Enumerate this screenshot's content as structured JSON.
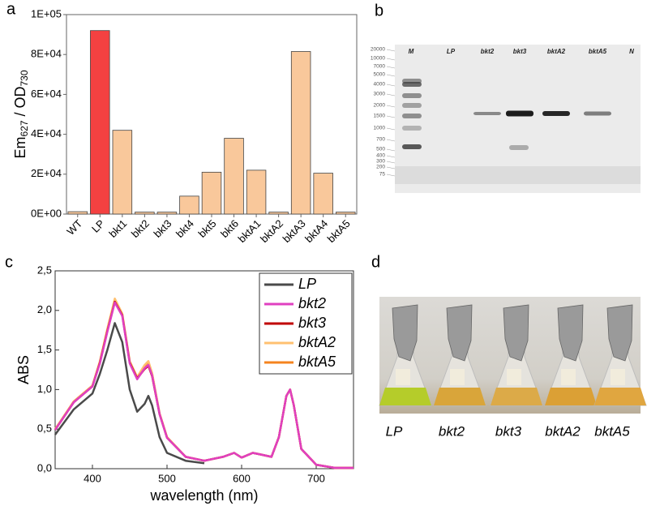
{
  "chart_data": [
    {
      "type": "bar",
      "panel": "a",
      "ylabel": [
        "Em",
        "627",
        " / OD",
        "730"
      ],
      "categories": [
        "WT",
        "LP",
        "bkt1",
        "bkt2",
        "bkt3",
        "bkt4",
        "bkt5",
        "bkt6",
        "bktA1",
        "bktA2",
        "bktA3",
        "bktA4",
        "bktA5"
      ],
      "values": [
        1200,
        92000,
        42000,
        1000,
        1000,
        9000,
        21000,
        38000,
        22000,
        1000,
        81500,
        20500,
        1000
      ],
      "colors": [
        "#f9c89b",
        "#f44141",
        "#f9c89b",
        "#f9c89b",
        "#f9c89b",
        "#f9c89b",
        "#f9c89b",
        "#f9c89b",
        "#f9c89b",
        "#f9c89b",
        "#f9c89b",
        "#f9c89b",
        "#f9c89b"
      ],
      "ylim": [
        0,
        100000
      ],
      "yticks": [
        {
          "value": 0,
          "label": "0E+00"
        },
        {
          "value": 20000,
          "label": "2E+04"
        },
        {
          "value": 40000,
          "label": "4E+04"
        },
        {
          "value": 60000,
          "label": "6E+04"
        },
        {
          "value": 80000,
          "label": "8E+04"
        },
        {
          "value": 100000,
          "label": "1E+05"
        }
      ]
    },
    {
      "type": "line",
      "panel": "c",
      "xlabel": "wavelength (nm)",
      "ylabel": "ABS",
      "x": [
        350,
        375,
        400,
        410,
        420,
        430,
        440,
        450,
        460,
        470,
        475,
        480,
        490,
        500,
        525,
        550,
        575,
        590,
        600,
        615,
        625,
        640,
        650,
        660,
        665,
        670,
        680,
        700,
        725,
        750
      ],
      "series": [
        {
          "name": "LP",
          "color": "#4a4a4a",
          "values": [
            0.43,
            0.75,
            0.95,
            1.2,
            1.5,
            1.84,
            1.6,
            1.0,
            0.72,
            0.82,
            0.92,
            0.8,
            0.4,
            0.2,
            0.1,
            0.07,
            null,
            null,
            null,
            null,
            null,
            null,
            null,
            null,
            null,
            null,
            null,
            null,
            null,
            null
          ]
        },
        {
          "name": "bkt2",
          "color": "#e040c0",
          "values": [
            0.49,
            0.84,
            1.04,
            1.33,
            1.73,
            2.1,
            1.93,
            1.33,
            1.13,
            1.27,
            1.31,
            1.18,
            0.69,
            0.39,
            0.15,
            0.1,
            0.15,
            0.2,
            0.14,
            0.2,
            0.18,
            0.15,
            0.4,
            0.92,
            1.0,
            0.8,
            0.25,
            0.05,
            0.01,
            0.01
          ]
        },
        {
          "name": "bkt3",
          "color": "#c00000",
          "values": [
            0.49,
            0.84,
            1.04,
            1.34,
            1.74,
            2.11,
            1.94,
            1.34,
            1.14,
            1.26,
            1.3,
            1.17,
            0.69,
            0.39,
            0.15,
            0.1,
            0.15,
            0.2,
            0.14,
            0.2,
            0.18,
            0.15,
            0.4,
            0.92,
            1.0,
            0.8,
            0.25,
            0.05,
            0.01,
            0.01
          ]
        },
        {
          "name": "bktA2",
          "color": "#ffc070",
          "values": [
            0.5,
            0.85,
            1.05,
            1.36,
            1.77,
            2.15,
            1.96,
            1.36,
            1.16,
            1.31,
            1.36,
            1.21,
            0.7,
            0.4,
            0.15,
            0.1,
            0.15,
            0.2,
            0.14,
            0.2,
            0.18,
            0.15,
            0.4,
            0.92,
            1.0,
            0.8,
            0.25,
            0.05,
            0.01,
            0.01
          ]
        },
        {
          "name": "bktA5",
          "color": "#f5841f",
          "values": [
            0.5,
            0.85,
            1.05,
            1.35,
            1.75,
            2.12,
            1.95,
            1.35,
            1.15,
            1.3,
            1.35,
            1.2,
            0.7,
            0.4,
            0.15,
            0.1,
            0.15,
            0.2,
            0.14,
            0.2,
            0.18,
            0.15,
            0.4,
            0.92,
            1.0,
            0.8,
            0.25,
            0.05,
            0.01,
            0.01
          ]
        }
      ],
      "xlim": [
        350,
        750
      ],
      "xticks": [
        400,
        500,
        600,
        700
      ],
      "ylim": [
        0,
        2.5
      ],
      "yticks": [
        {
          "value": 0,
          "label": "0,0"
        },
        {
          "value": 0.5,
          "label": "0,5"
        },
        {
          "value": 1,
          "label": "1,0"
        },
        {
          "value": 1.5,
          "label": "1,5"
        },
        {
          "value": 2,
          "label": "2,0"
        },
        {
          "value": 2.5,
          "label": "2,5"
        }
      ],
      "legend": "upper right"
    }
  ],
  "gel": {
    "panel": "b",
    "lanes": [
      "M",
      "LP",
      "bkt2",
      "bkt3",
      "bktA2",
      "bktA5",
      "N"
    ],
    "ladder": [
      "20000",
      "10000",
      "7000",
      "5000",
      "4000",
      "3000",
      "2000",
      "1500",
      "1000",
      "700",
      "500",
      "400",
      "300",
      "200",
      "75"
    ]
  },
  "photo": {
    "panel": "d",
    "labels": [
      "LP",
      "bkt2",
      "bkt3",
      "bktA2",
      "bktA5"
    ]
  }
}
